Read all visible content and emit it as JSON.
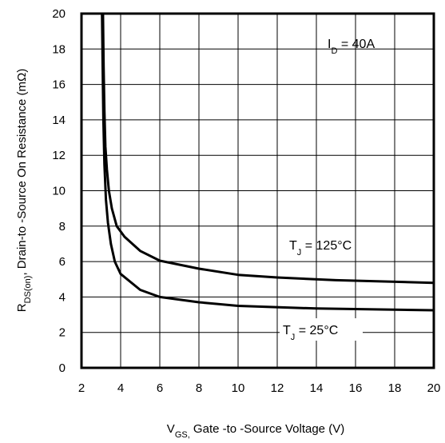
{
  "chart_data": {
    "type": "line",
    "title": "",
    "xlabel": {
      "prefix": "V",
      "sub": "GS,",
      "text": " Gate -to -Source Voltage  (V)"
    },
    "ylabel": {
      "prefix": "R",
      "sub": "DS(on)",
      "text": ",   Drain-to -Source On Resistance (mΩ)"
    },
    "xlim": [
      2,
      20
    ],
    "ylim": [
      0,
      20
    ],
    "xticks": [
      "2",
      "4",
      "6",
      "8",
      "10",
      "12",
      "14",
      "16",
      "18",
      "20"
    ],
    "yticks": [
      "0",
      "2",
      "4",
      "6",
      "8",
      "10",
      "12",
      "14",
      "16",
      "18",
      "20"
    ],
    "grid": true,
    "legend": "none",
    "series": [
      {
        "label_prefix": "T",
        "label_sub": "J",
        "label_text": " = 125°C",
        "x": [
          3.1,
          3.13,
          3.17,
          3.22,
          3.3,
          3.4,
          3.55,
          3.8,
          4.2,
          5.0,
          6.0,
          8.0,
          10.0,
          12.0,
          15.0,
          20.0
        ],
        "y": [
          20,
          17,
          14.5,
          12.5,
          11.2,
          10.0,
          9.0,
          8.0,
          7.4,
          6.6,
          6.05,
          5.6,
          5.25,
          5.1,
          4.95,
          4.8
        ]
      },
      {
        "label_prefix": "T",
        "label_sub": "J",
        "label_text": " = 25°C",
        "x": [
          3.05,
          3.08,
          3.12,
          3.17,
          3.25,
          3.35,
          3.5,
          3.7,
          4.0,
          5.0,
          6.0,
          8.0,
          10.0,
          14.0,
          20.0
        ],
        "y": [
          20,
          17,
          14,
          11.5,
          9.5,
          8.2,
          7.0,
          6.0,
          5.3,
          4.4,
          4.0,
          3.7,
          3.5,
          3.35,
          3.25
        ]
      }
    ],
    "annotation": {
      "prefix": "I",
      "sub": "D",
      "text": " = 40A"
    }
  }
}
